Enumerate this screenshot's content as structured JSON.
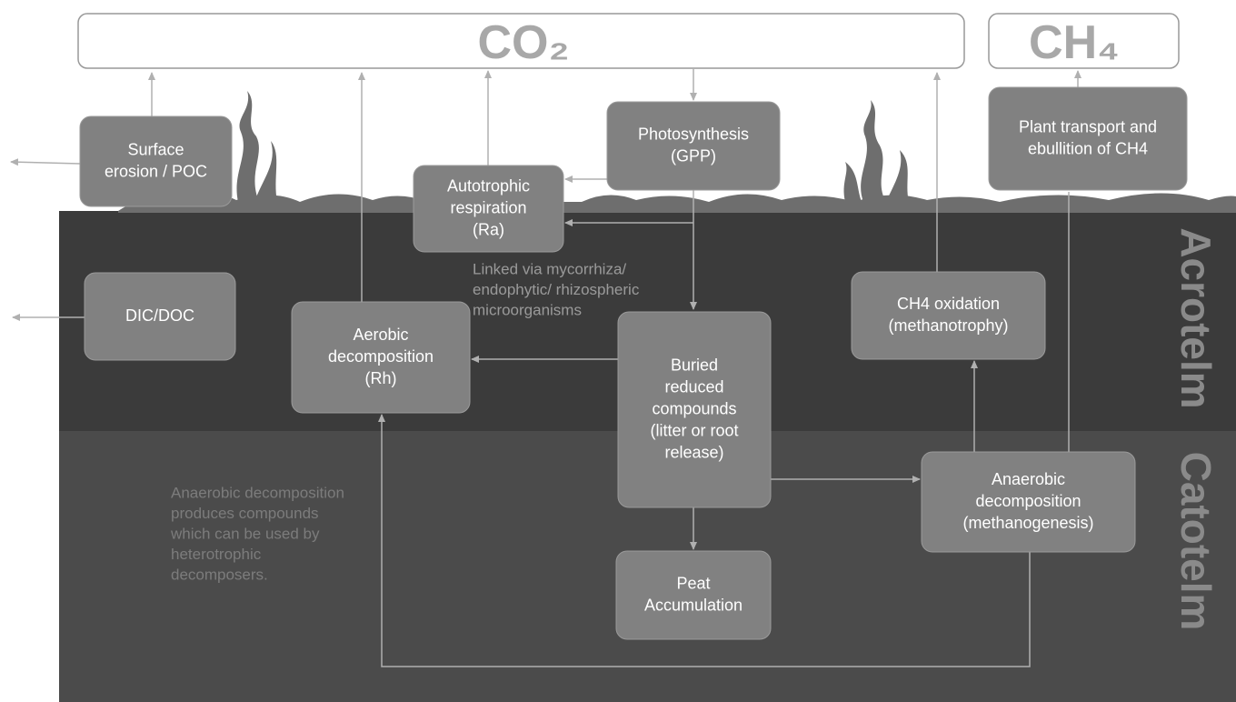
{
  "header": {
    "co2": "CO₂",
    "ch4": "CH₄"
  },
  "nodes": [
    {
      "lines": [
        "Surface",
        "erosion / POC"
      ]
    },
    {
      "lines": [
        "Photosynthesis",
        "(GPP)"
      ]
    },
    {
      "lines": [
        "Autotrophic",
        "respiration",
        "(Ra)"
      ]
    },
    {
      "lines": [
        "Plant transport and",
        "ebullition of CH4"
      ]
    },
    {
      "lines": [
        "DIC/DOC"
      ]
    },
    {
      "lines": [
        "Aerobic",
        "decomposition",
        "(Rh)"
      ]
    },
    {
      "lines": [
        "Buried",
        "reduced",
        "compounds",
        "(litter or root",
        "release)"
      ]
    },
    {
      "lines": [
        "CH4 oxidation",
        "(methanotrophy)"
      ]
    },
    {
      "lines": [
        "Anaerobic",
        "decomposition",
        "(methanogenesis)"
      ]
    },
    {
      "lines": [
        "Peat",
        "Accumulation"
      ]
    }
  ],
  "notes": [
    {
      "lines": [
        "Linked via mycorrhiza/",
        "endophytic/ rhizospheric",
        "microorganisms"
      ]
    },
    {
      "lines": [
        "Anaerobic decomposition",
        "produces compounds",
        "which can be used by",
        "heterotrophic",
        "decomposers."
      ]
    }
  ],
  "layers": [
    "Acrotelm",
    "Catotelm"
  ]
}
